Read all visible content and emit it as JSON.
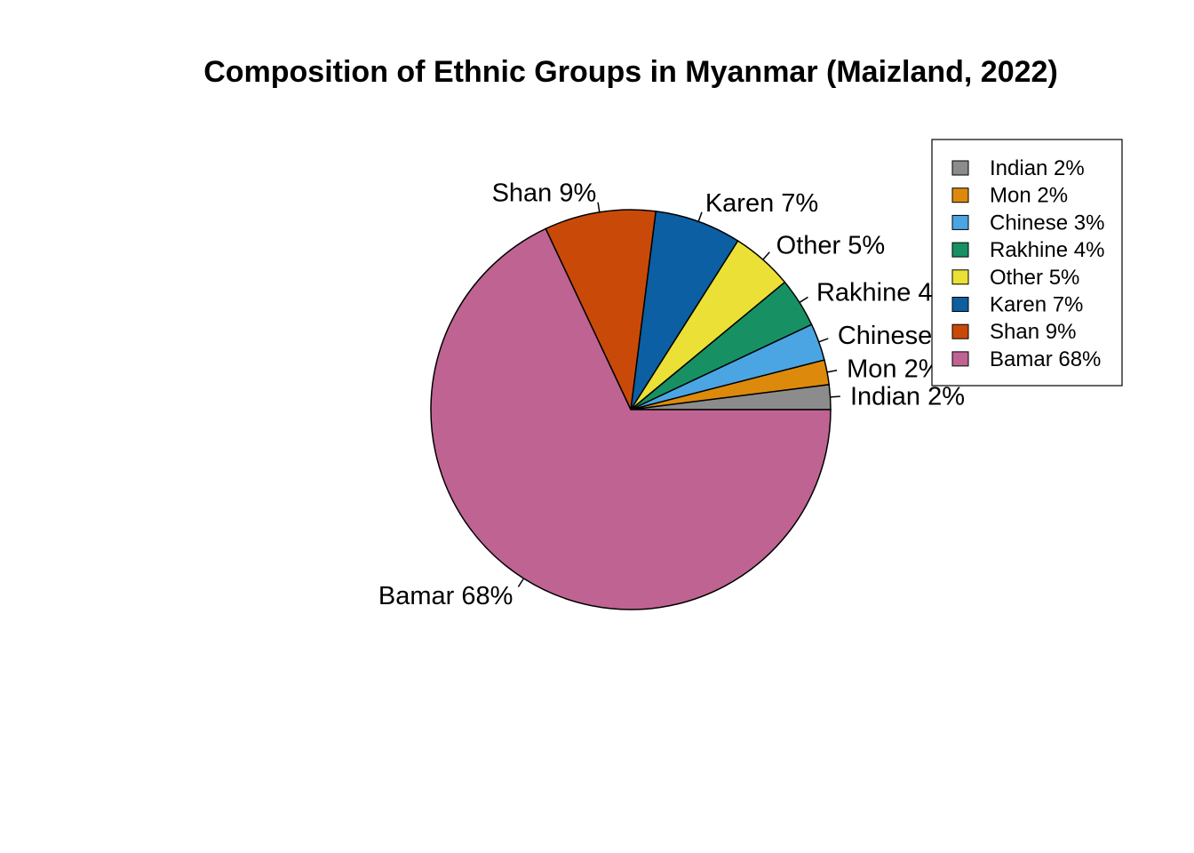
{
  "chart_data": {
    "type": "pie",
    "title": "Composition of Ethnic Groups in Myanmar (Maizland, 2022)",
    "start_angle_deg": 0,
    "direction": "counterclockwise",
    "slices": [
      {
        "label": "Indian 2%",
        "value": 2,
        "color": "#8c8c8c"
      },
      {
        "label": "Mon 2%",
        "value": 2,
        "color": "#dd8a0c"
      },
      {
        "label": "Chinese 3%",
        "value": 3,
        "color": "#4ba5e3"
      },
      {
        "label": "Rakhine 4%",
        "value": 4,
        "color": "#179163"
      },
      {
        "label": "Other 5%",
        "value": 5,
        "color": "#ebe035"
      },
      {
        "label": "Karen 7%",
        "value": 7,
        "color": "#0b5fa2"
      },
      {
        "label": "Shan 9%",
        "value": 9,
        "color": "#c94a08"
      },
      {
        "label": "Bamar 68%",
        "value": 68,
        "color": "#bf6393"
      }
    ],
    "legend": {
      "position": "top-right",
      "entries": [
        "Indian 2%",
        "Mon 2%",
        "Chinese 3%",
        "Rakhine 4%",
        "Other 5%",
        "Karen 7%",
        "Shan 9%",
        "Bamar 68%"
      ]
    }
  }
}
